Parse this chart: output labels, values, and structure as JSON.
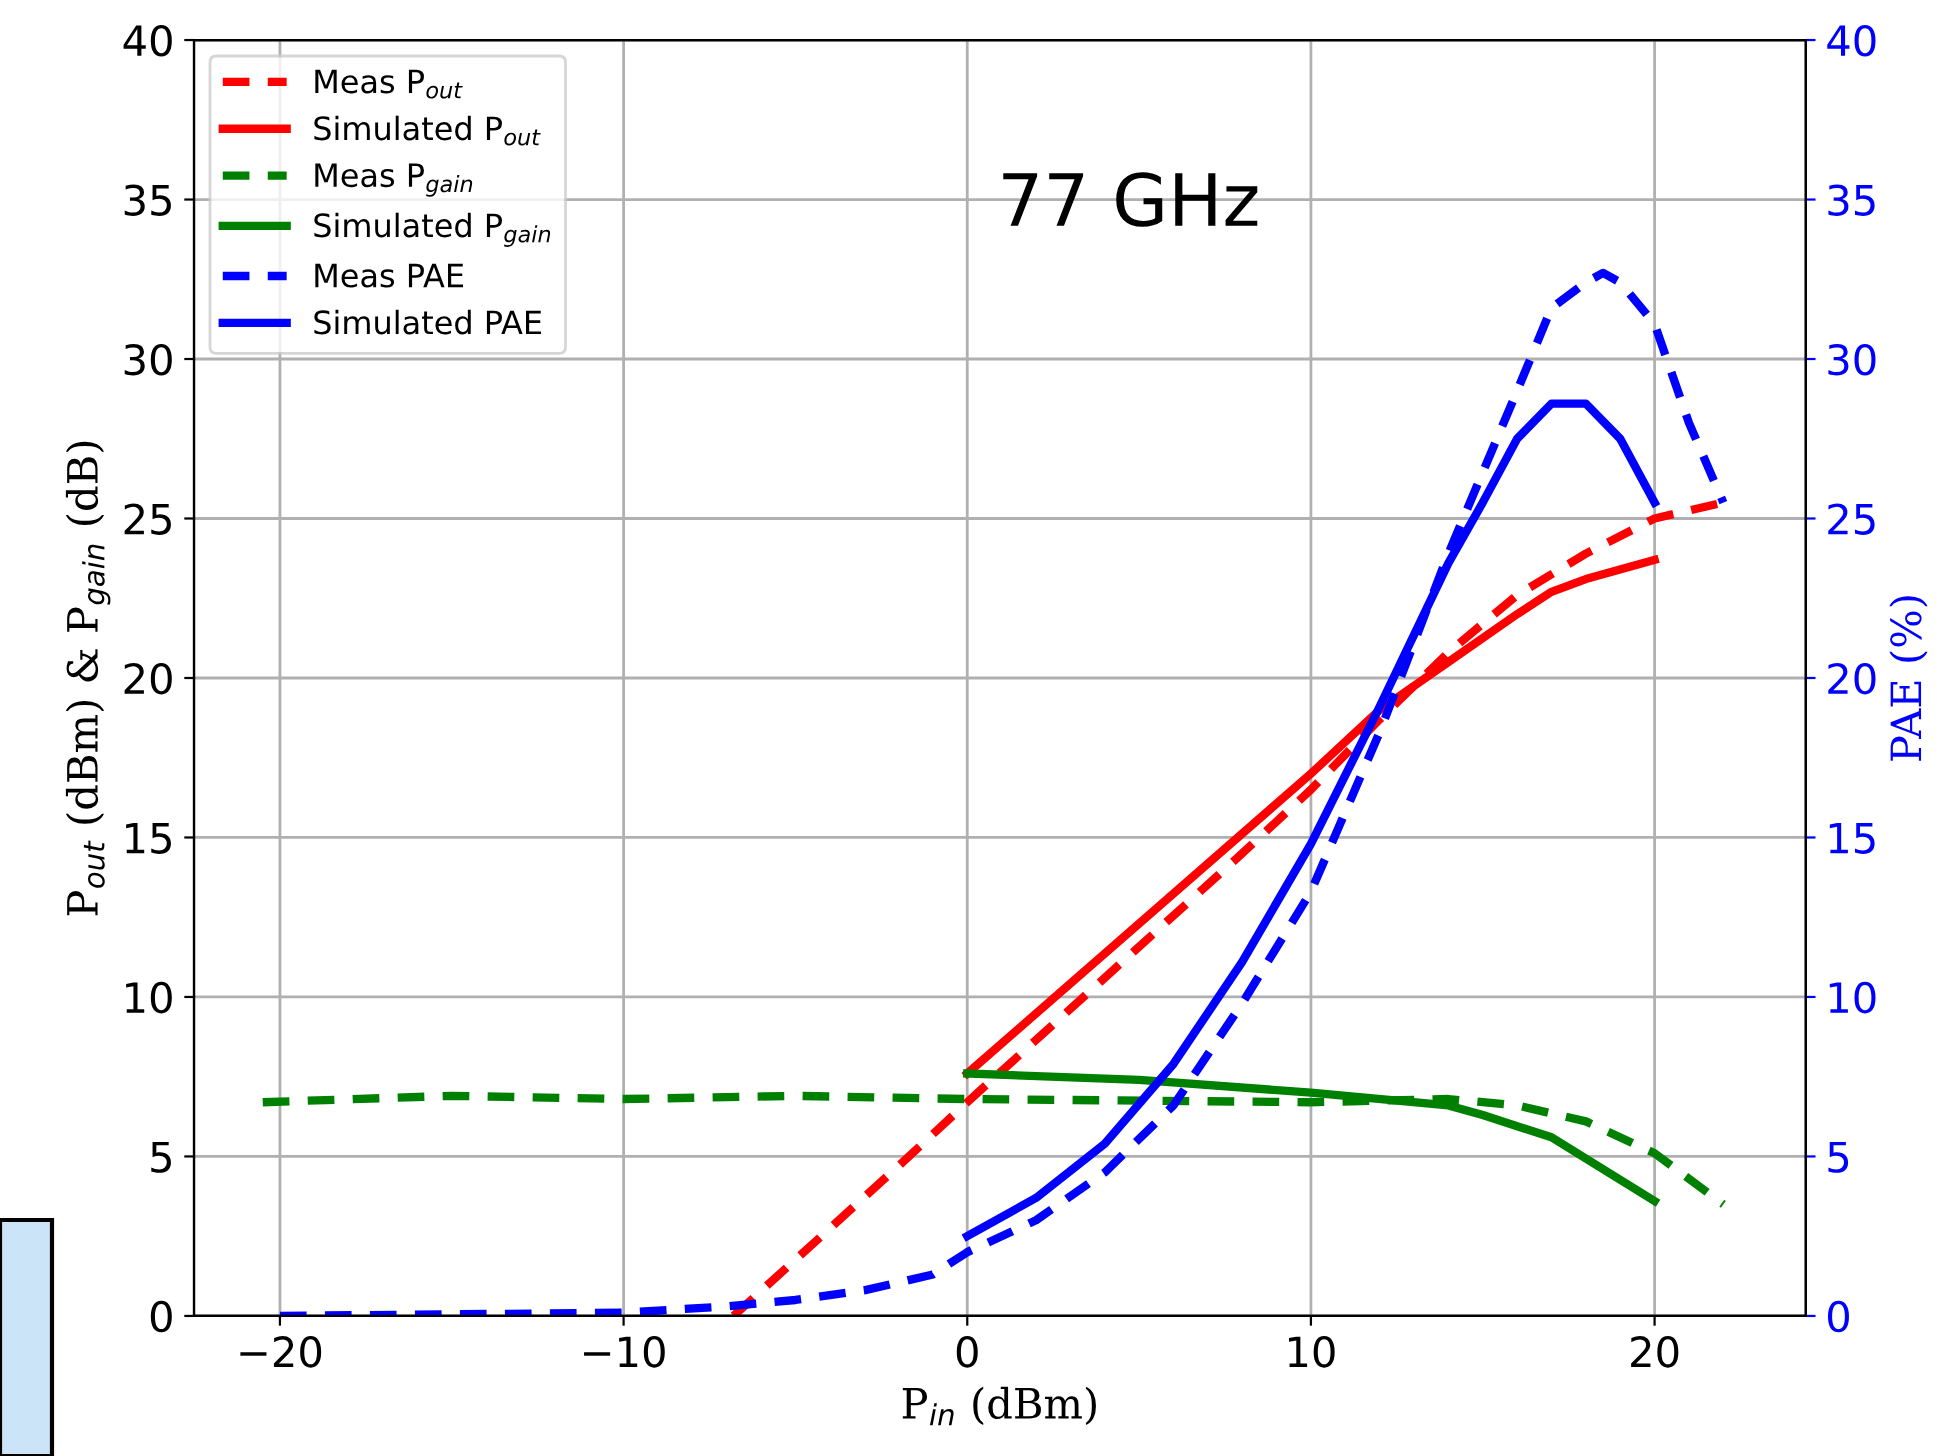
{
  "chart_data": {
    "type": "line",
    "xlabel": "P$_{in}$ (dBm)",
    "ylabel": "P$_{out}$ (dBm) & P$_{gain}$ (dB)",
    "y2label": "PAE (%)",
    "annotations": [
      "77 GHz"
    ],
    "xlim": [
      -22.5,
      24.4
    ],
    "xticks": [
      {
        "value": -20,
        "label": "−20"
      },
      {
        "value": -10,
        "label": "−10"
      },
      0,
      10,
      20
    ],
    "ylim": [
      0,
      40
    ],
    "yticks": [
      0,
      5,
      10,
      15,
      20,
      25,
      30,
      35,
      40
    ],
    "y2lim": [
      0,
      40
    ],
    "y2ticks": [
      0,
      5,
      10,
      15,
      20,
      25,
      30,
      35,
      40
    ],
    "grid": true,
    "legend": "top left",
    "series": [
      {
        "name": "Meas P$_{out}$",
        "color": "#ff0000",
        "line_style": "dashed",
        "x": [
          -6.8,
          -2,
          0,
          4,
          8,
          10,
          12,
          14,
          16,
          18,
          20,
          22
        ],
        "values": [
          0,
          4.7,
          6.7,
          10.6,
          14.5,
          16.5,
          18.7,
          20.8,
          22.6,
          23.9,
          25,
          25.5
        ]
      },
      {
        "name": "Simulated P$_{out}$",
        "color": "#ff0000",
        "line_style": "solid",
        "x": [
          0,
          10,
          12,
          14,
          16,
          17,
          18,
          20
        ],
        "values": [
          7.6,
          17,
          19,
          20.5,
          22,
          22.7,
          23.1,
          23.7
        ]
      },
      {
        "name": "Meas P$_{gain}$",
        "color": "#008000",
        "line_style": "dashed",
        "x": [
          -20.5,
          -15,
          -10,
          -5,
          0,
          10,
          14,
          16,
          18,
          20,
          22
        ],
        "values": [
          6.7,
          6.9,
          6.8,
          6.9,
          6.8,
          6.7,
          6.8,
          6.6,
          6.1,
          5.1,
          3.5
        ]
      },
      {
        "name": "Simulated P$_{gain}$",
        "color": "#008000",
        "line_style": "solid",
        "x": [
          0,
          5,
          10,
          14,
          15,
          17,
          20
        ],
        "values": [
          7.6,
          7.4,
          7.0,
          6.6,
          6.3,
          5.6,
          3.6
        ]
      },
      {
        "name": "Meas PAE",
        "color": "#0000ff",
        "line_style": "dashed",
        "axis": "y2",
        "x": [
          -20,
          -10,
          -7,
          -5,
          -3,
          -1,
          0,
          2,
          4,
          6,
          8,
          10,
          12,
          14,
          16,
          17,
          18,
          18.5,
          19,
          20,
          21,
          22
        ],
        "values": [
          0,
          0.1,
          0.3,
          0.5,
          0.8,
          1.3,
          2.0,
          3.0,
          4.5,
          6.6,
          9.8,
          13.3,
          18.3,
          23.9,
          29,
          31.6,
          32.4,
          32.7,
          32.4,
          31.1,
          28,
          25.5
        ]
      },
      {
        "name": "Simulated PAE",
        "color": "#0000ff",
        "line_style": "solid",
        "axis": "y2",
        "x": [
          0,
          2,
          4,
          6,
          8,
          10,
          12,
          14,
          15,
          16,
          17,
          18,
          19,
          20
        ],
        "values": [
          2.5,
          3.7,
          5.4,
          7.9,
          11.1,
          14.8,
          19.1,
          23.6,
          25.5,
          27.5,
          28.6,
          28.6,
          27.5,
          25.5
        ]
      }
    ]
  }
}
